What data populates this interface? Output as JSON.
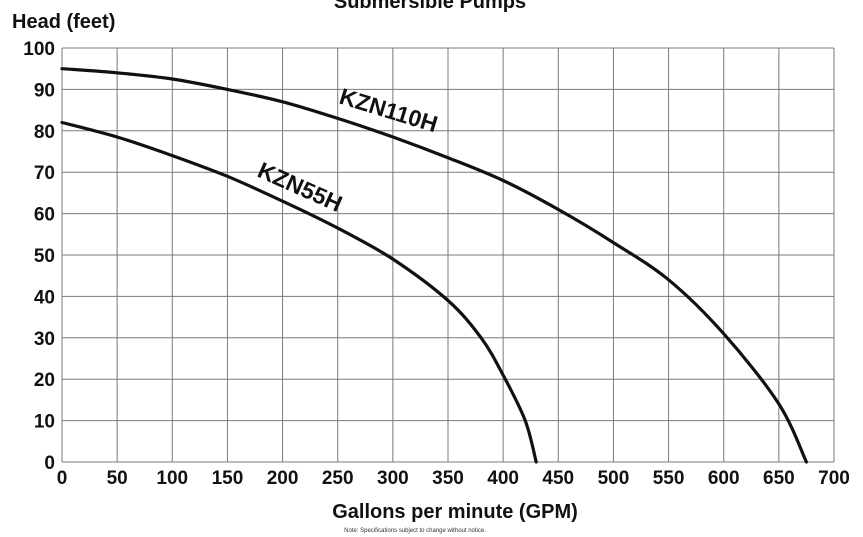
{
  "chart_data": {
    "type": "line",
    "title": "Submersible Pumps",
    "xlabel": "Gallons per minute (GPM)",
    "ylabel": "Head (feet)",
    "xlim": [
      0,
      700
    ],
    "ylim": [
      0,
      100
    ],
    "x_ticks": [
      "0",
      "50",
      "100",
      "150",
      "200",
      "250",
      "300",
      "350",
      "400",
      "450",
      "500",
      "550",
      "600",
      "650",
      "700"
    ],
    "y_ticks": [
      "0",
      "10",
      "20",
      "30",
      "40",
      "50",
      "60",
      "70",
      "80",
      "90",
      "100"
    ],
    "grid": true,
    "series": [
      {
        "name": "KZN110H",
        "x": [
          0,
          50,
          100,
          150,
          200,
          250,
          300,
          350,
          400,
          450,
          500,
          550,
          600,
          650,
          675
        ],
        "y": [
          95,
          94,
          92.5,
          90,
          87,
          83,
          78.5,
          73.5,
          68,
          61,
          53,
          44,
          31,
          14,
          0
        ]
      },
      {
        "name": "KZN55H",
        "x": [
          0,
          50,
          100,
          150,
          200,
          250,
          300,
          350,
          380,
          400,
          420,
          430
        ],
        "y": [
          82,
          78.5,
          74,
          69,
          63,
          56.5,
          49,
          39,
          30,
          21,
          10,
          0
        ]
      }
    ],
    "note": "Note: Specifications subject to change without notice."
  }
}
